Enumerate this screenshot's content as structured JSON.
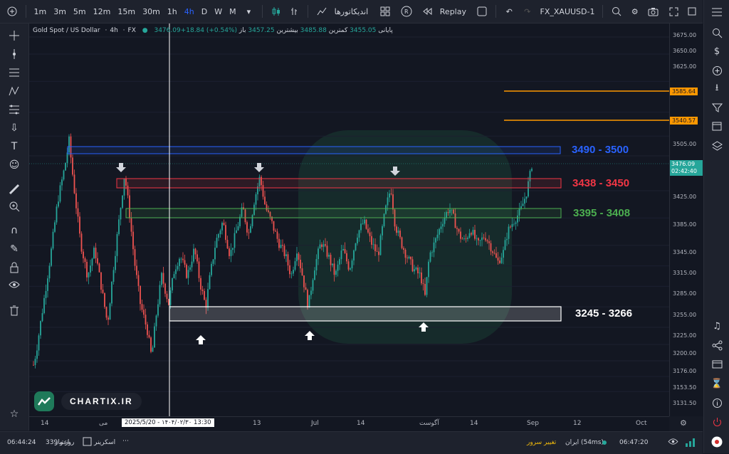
{
  "toolbar": {
    "timeframes": [
      "1m",
      "3m",
      "5m",
      "12m",
      "15m",
      "30m",
      "1h",
      "4h",
      "D",
      "W",
      "M"
    ],
    "active_timeframe": "4h",
    "indicators_label": "اندیکاتورها",
    "replay_label": "Replay",
    "symbol": "FX_XAUUSD-1"
  },
  "legend": {
    "symbol": "Gold Spot / US Dollar",
    "interval": "4h",
    "exchange": "FX",
    "close_label": "پایانی",
    "close_value": "3476.09+18.84 (+0.54%)",
    "low_label": "کمترین",
    "low_value": "3455.05",
    "high_label": "بیشترین",
    "high_value": "3485.88",
    "open_label": "باز",
    "open_value": "3457.25"
  },
  "zones": {
    "z1": "3490 - 3500",
    "z2": "3438 - 3450",
    "z3": "3395 - 3408",
    "z4": "3245 - 3266"
  },
  "colors": {
    "z1": "#2962ff",
    "z2": "#f23645",
    "z3": "#4caf50",
    "z4": "#ffffff",
    "level": "#ff9800",
    "bull": "#26a69a",
    "bear": "#ef5350"
  },
  "price_axis": [
    "3675.00",
    "3650.00",
    "3625.00",
    "3585.64",
    "3540.57",
    "3505.00",
    "3476.09",
    "3425.00",
    "3385.00",
    "3345.00",
    "3315.00",
    "3285.00",
    "3255.00",
    "3225.00",
    "3200.00",
    "3176.00",
    "3153.50",
    "3131.50"
  ],
  "levels": {
    "l1": "3585.64",
    "l2": "3540.57"
  },
  "last_price": {
    "value": "3476.09",
    "countdown": "02:42:40"
  },
  "time_axis": [
    "14",
    "می",
    "13",
    "Jul",
    "14",
    "آگوست",
    "14",
    "Sep",
    "12",
    "Oct"
  ],
  "crosshair_date": "2025/5/20 - ۱۴۰۴/۰۲/۳۰   13:30",
  "brand": "CHARTIX.IR",
  "status": {
    "left_time": "06:44:24",
    "credit": "339 روز و",
    "credit_label": "اعتبار",
    "screener": "اسکرینر",
    "server_change": "تغییر سرور",
    "server": "ایران (54ms)",
    "clock": "06:47:20"
  }
}
